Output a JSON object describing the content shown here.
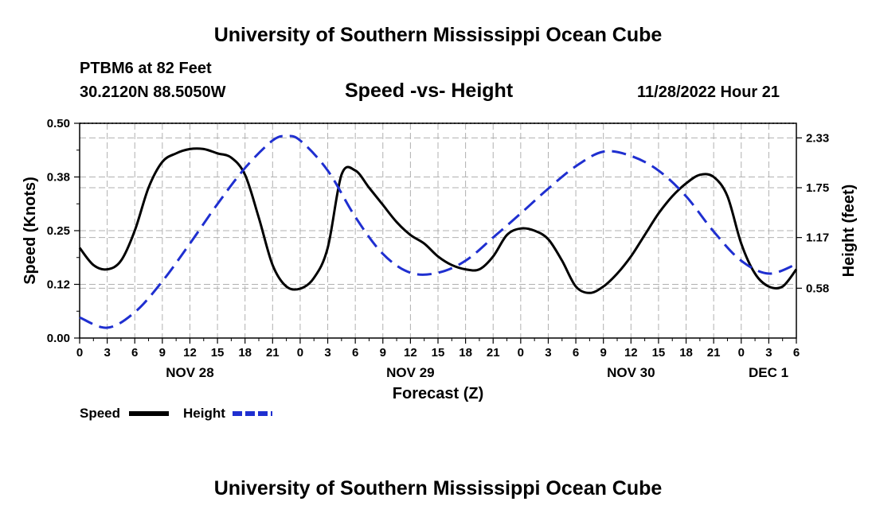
{
  "header": {
    "title": "University of Southern Mississippi Ocean Cube",
    "station": "PTBM6 at 82 Feet",
    "coordinates": "30.2120N  88.5050W",
    "subtitle": "Speed -vs- Height",
    "timestamp": "11/28/2022 Hour 21"
  },
  "footer": {
    "title": "University of Southern Mississippi Ocean Cube"
  },
  "chart_data": {
    "type": "line",
    "title": "Speed -vs- Height",
    "xlabel": "Forecast (Z)",
    "ylabel": "Speed (Knots)",
    "y2label": "Height (feet)",
    "ylim": [
      0,
      0.5
    ],
    "y2lim": [
      0,
      2.5
    ],
    "xlim": [
      0,
      78
    ],
    "grid": true,
    "legend_position": "bottom-left",
    "x_tick_labels": [
      "0",
      "3",
      "6",
      "9",
      "12",
      "15",
      "18",
      "21",
      "0",
      "3",
      "6",
      "9",
      "12",
      "15",
      "18",
      "21",
      "0",
      "3",
      "6",
      "9",
      "12",
      "15",
      "18",
      "21",
      "0",
      "3",
      "6"
    ],
    "day_labels": [
      {
        "label": "NOV 28",
        "hour": 12
      },
      {
        "label": "NOV 29",
        "hour": 36
      },
      {
        "label": "NOV 30",
        "hour": 60
      },
      {
        "label": "DEC 1",
        "hour": 78
      }
    ],
    "y_tick_labels": [
      "0.00",
      "0.12",
      "0.25",
      "0.38",
      "0.50"
    ],
    "y_tick_values": [
      0,
      0.125,
      0.25,
      0.375,
      0.5
    ],
    "y2_tick_labels": [
      "0.58",
      "1.17",
      "1.75",
      "2.33"
    ],
    "y2_tick_values": [
      0.58,
      1.17,
      1.75,
      2.33
    ],
    "series": [
      {
        "name": "Speed",
        "axis": "left",
        "color": "#000000",
        "dash": "solid",
        "x": [
          0,
          1.5,
          3,
          4.5,
          6,
          7.5,
          9,
          10.5,
          12,
          13.5,
          15,
          16.5,
          18,
          19.5,
          21,
          22.5,
          24,
          25.5,
          27,
          28.5,
          30,
          31.5,
          33,
          34.5,
          36,
          37.5,
          39,
          40.5,
          42,
          43.5,
          45,
          46.5,
          48,
          49.5,
          51,
          52.5,
          54,
          55.5,
          57,
          58.5,
          60,
          61.5,
          63,
          64.5,
          66,
          67.5,
          69,
          70.5,
          72,
          73.5,
          75,
          76.5,
          78
        ],
        "values": [
          0.21,
          0.17,
          0.16,
          0.18,
          0.25,
          0.35,
          0.41,
          0.43,
          0.44,
          0.44,
          0.43,
          0.42,
          0.38,
          0.28,
          0.17,
          0.12,
          0.115,
          0.14,
          0.21,
          0.38,
          0.39,
          0.35,
          0.31,
          0.27,
          0.24,
          0.22,
          0.19,
          0.17,
          0.16,
          0.16,
          0.19,
          0.24,
          0.255,
          0.25,
          0.23,
          0.18,
          0.12,
          0.105,
          0.12,
          0.15,
          0.19,
          0.24,
          0.29,
          0.33,
          0.36,
          0.38,
          0.375,
          0.33,
          0.22,
          0.15,
          0.12,
          0.12,
          0.16
        ]
      },
      {
        "name": "Height",
        "axis": "right",
        "color": "#1f2fd0",
        "dash": "dashed",
        "x": [
          0,
          3,
          6,
          9,
          12,
          15,
          18,
          21,
          22.5,
          24,
          27,
          30,
          33,
          36,
          39,
          42,
          45,
          48,
          51,
          54,
          57,
          60,
          63,
          66,
          69,
          72,
          75,
          78
        ],
        "values": [
          0.24,
          0.12,
          0.3,
          0.66,
          1.1,
          1.56,
          1.98,
          2.3,
          2.35,
          2.3,
          1.95,
          1.41,
          0.98,
          0.76,
          0.76,
          0.9,
          1.17,
          1.45,
          1.74,
          2.0,
          2.17,
          2.12,
          1.95,
          1.65,
          1.24,
          0.9,
          0.75,
          0.86
        ]
      }
    ],
    "legend": [
      {
        "label": "Speed",
        "color": "#000000"
      },
      {
        "label": "Height",
        "color": "#1f2fd0"
      }
    ]
  }
}
